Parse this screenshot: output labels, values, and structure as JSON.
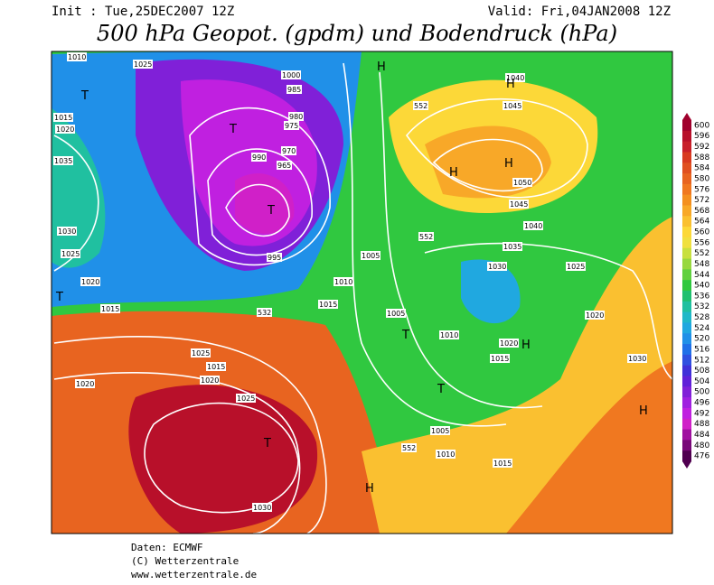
{
  "header": {
    "init": "Init : Tue,25DEC2007 12Z",
    "valid": "Valid: Fri,04JAN2008 12Z",
    "title": "500 hPa Geopot. (gpdm) und Bodendruck (hPa)"
  },
  "map": {
    "labels": [
      "1010",
      "1025",
      "1015",
      "1020",
      "1035",
      "1030",
      "1025",
      "1020",
      "1015",
      "1000",
      "985",
      "980",
      "975",
      "970",
      "965",
      "990",
      "995",
      "1005",
      "1010",
      "1015",
      "1040",
      "1045",
      "1050",
      "1045",
      "1040",
      "1035",
      "1030",
      "1025",
      "1020",
      "1025",
      "1015",
      "1020",
      "1025",
      "1030",
      "1030",
      "1020",
      "1005",
      "1010",
      "1015",
      "1020",
      "1005",
      "1010",
      "1015",
      "552",
      "552",
      "552",
      "532"
    ],
    "centers": [
      "T",
      "T",
      "T",
      "T",
      "H",
      "H",
      "H",
      "H",
      "T",
      "T",
      "H",
      "H",
      "H",
      "T"
    ]
  },
  "colorbar": {
    "levels": [
      600,
      596,
      592,
      588,
      584,
      580,
      576,
      572,
      568,
      564,
      560,
      556,
      552,
      548,
      544,
      540,
      536,
      532,
      528,
      524,
      520,
      516,
      512,
      508,
      504,
      500,
      496,
      492,
      488,
      484,
      480,
      476
    ],
    "colors": [
      "#a0002c",
      "#b8102a",
      "#c8202a",
      "#d83a20",
      "#e05020",
      "#e86420",
      "#f07820",
      "#f49020",
      "#f8a828",
      "#fac030",
      "#fcd838",
      "#f0e040",
      "#c8e040",
      "#98d840",
      "#60d040",
      "#30c840",
      "#20c070",
      "#20c0a0",
      "#20b8c8",
      "#20a8e0",
      "#2090e8",
      "#2070e8",
      "#3050e0",
      "#4030d8",
      "#6020d8",
      "#8020d8",
      "#a020e0",
      "#c020e0",
      "#d020c8",
      "#a010a0",
      "#780878",
      "#500050"
    ]
  },
  "footer": [
    "Daten: ECMWF",
    "(C) Wetterzentrale",
    "www.wetterzentrale.de"
  ]
}
